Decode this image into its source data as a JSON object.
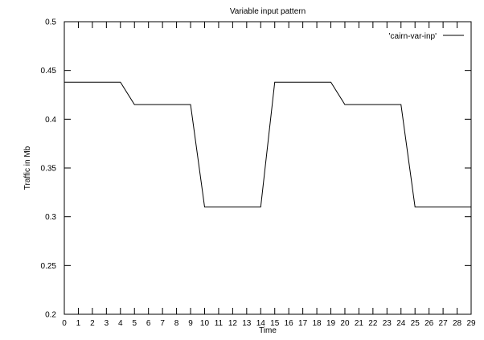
{
  "chart_data": {
    "type": "line",
    "title": "Variable input pattern",
    "xlabel": "Time",
    "ylabel": "Traffic in Mb",
    "xlim": [
      0,
      29
    ],
    "ylim": [
      0.2,
      0.5
    ],
    "x_ticks": [
      0,
      1,
      2,
      3,
      4,
      5,
      6,
      7,
      8,
      9,
      10,
      11,
      12,
      13,
      14,
      15,
      16,
      17,
      18,
      19,
      20,
      21,
      22,
      23,
      24,
      25,
      26,
      27,
      28,
      29
    ],
    "y_ticks": [
      0.2,
      0.25,
      0.3,
      0.35,
      0.4,
      0.45,
      0.5
    ],
    "y_tick_labels": [
      "0.2",
      "0.25",
      "0.3",
      "0.35",
      "0.4",
      "0.45",
      "0.5"
    ],
    "grid": false,
    "legend_position": "top-right",
    "series": [
      {
        "name": "'cairn-var-inp'",
        "color": "#000000",
        "x": [
          0,
          1,
          2,
          3,
          4,
          5,
          6,
          7,
          8,
          9,
          10,
          11,
          12,
          13,
          14,
          15,
          16,
          17,
          18,
          19,
          20,
          21,
          22,
          23,
          24,
          25,
          26,
          27,
          28,
          29
        ],
        "values": [
          0.438,
          0.438,
          0.438,
          0.438,
          0.438,
          0.415,
          0.415,
          0.415,
          0.415,
          0.415,
          0.31,
          0.31,
          0.31,
          0.31,
          0.31,
          0.438,
          0.438,
          0.438,
          0.438,
          0.438,
          0.415,
          0.415,
          0.415,
          0.415,
          0.415,
          0.31,
          0.31,
          0.31,
          0.31,
          0.31
        ]
      }
    ]
  }
}
